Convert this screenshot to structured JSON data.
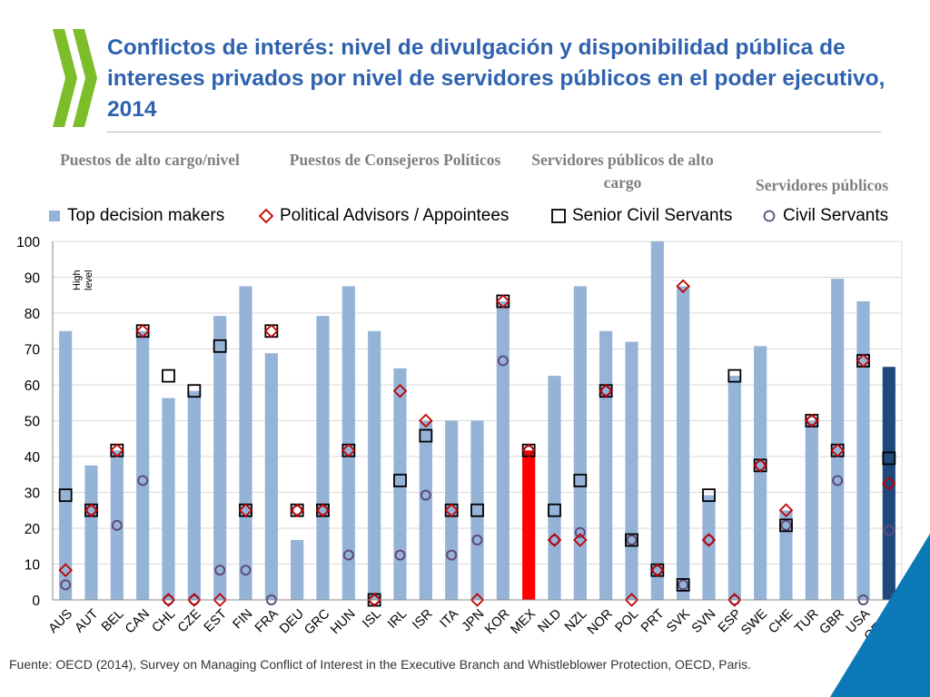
{
  "title": "Conflictos de interés: nivel de divulgación y disponibilidad pública de intereses privados por nivel de servidores públicos en el poder ejecutivo, 2014",
  "group_headers": {
    "top": "Puestos de alto cargo/nivel",
    "advisors": "Puestos de Consejeros Políticos",
    "senior": "Servidores públicos de alto cargo",
    "civil": "Servidores públicos"
  },
  "footer": "Fuente: OECD (2014), Survey on Managing Conflict of Interest in the Executive Branch and Whistleblower Protection, OECD, Paris.",
  "colors": {
    "bar": "#95b3d7",
    "bar_highlight": "#ff0000",
    "bar_oecd": "#1f497d",
    "advisor_marker": "#c00000",
    "senior_marker": "#000000",
    "civil_marker": "#604a7b",
    "title": "#2e62ae",
    "logo_green": "#7cbd2a"
  },
  "chart_data": {
    "type": "bar",
    "title": "Conflictos de interés: nivel de divulgación y disponibilidad pública de intereses privados por nivel de servidores públicos en el poder ejecutivo, 2014",
    "xlabel": "",
    "ylabel": "",
    "ylim": [
      0,
      100
    ],
    "yticks": [
      0,
      10,
      20,
      30,
      40,
      50,
      60,
      70,
      80,
      90,
      100
    ],
    "grid": true,
    "legend_position": "top",
    "annotation": "High level",
    "highlight": {
      "MEX": "highlight",
      "OECD": "oecd"
    },
    "categories": [
      "AUS",
      "AUT",
      "BEL",
      "CAN",
      "CHL",
      "CZE",
      "EST",
      "FIN",
      "FRA",
      "DEU",
      "GRC",
      "HUN",
      "ISL",
      "IRL",
      "ISR",
      "ITA",
      "JPN",
      "KOR",
      "MEX",
      "NLD",
      "NZL",
      "NOR",
      "POL",
      "PRT",
      "SVK",
      "SVN",
      "ESP",
      "SWE",
      "CHE",
      "TUR",
      "GBR",
      "USA",
      "OECD"
    ],
    "series": [
      {
        "name": "Top decision makers",
        "kind": "bar",
        "values": [
          75,
          37.5,
          41.7,
          75,
          56.3,
          58.3,
          79.2,
          87.5,
          68.8,
          16.7,
          79.2,
          87.5,
          75,
          64.6,
          50,
          50,
          50,
          83.3,
          41.7,
          62.5,
          87.5,
          75,
          72,
          100,
          87.5,
          29.2,
          62.5,
          70.8,
          25,
          50,
          89.6,
          83.3,
          65
        ]
      },
      {
        "name": "Political Advisors / Appointees",
        "kind": "diamond",
        "values": [
          8.3,
          25,
          41.7,
          75,
          0,
          0,
          0,
          25,
          75,
          25,
          25,
          41.7,
          0,
          58.3,
          50,
          25,
          0,
          83.3,
          41.7,
          16.7,
          16.7,
          58.3,
          0,
          8.3,
          87.5,
          16.7,
          0,
          37.5,
          25,
          50,
          41.7,
          66.7,
          32.5
        ]
      },
      {
        "name": "Senior Civil Servants",
        "kind": "square",
        "values": [
          29.2,
          25,
          41.7,
          75,
          62.5,
          58.3,
          70.8,
          25,
          75,
          25,
          25,
          41.7,
          0,
          33.3,
          45.8,
          25,
          25,
          83.3,
          41.7,
          25,
          33.3,
          58.3,
          16.7,
          8.3,
          4.2,
          29.2,
          62.5,
          37.5,
          20.8,
          50,
          41.7,
          66.7,
          39.5
        ]
      },
      {
        "name": "Civil Servants",
        "kind": "circle",
        "values": [
          4.2,
          25,
          20.8,
          33.3,
          0,
          0,
          8.3,
          8.3,
          0,
          25,
          25,
          12.5,
          0,
          12.5,
          29.2,
          12.5,
          16.7,
          66.7,
          41.7,
          16.7,
          18.8,
          58.3,
          16.7,
          8.3,
          4.2,
          16.7,
          0,
          37.5,
          20.8,
          50,
          33.3,
          0,
          19.4
        ]
      }
    ]
  }
}
